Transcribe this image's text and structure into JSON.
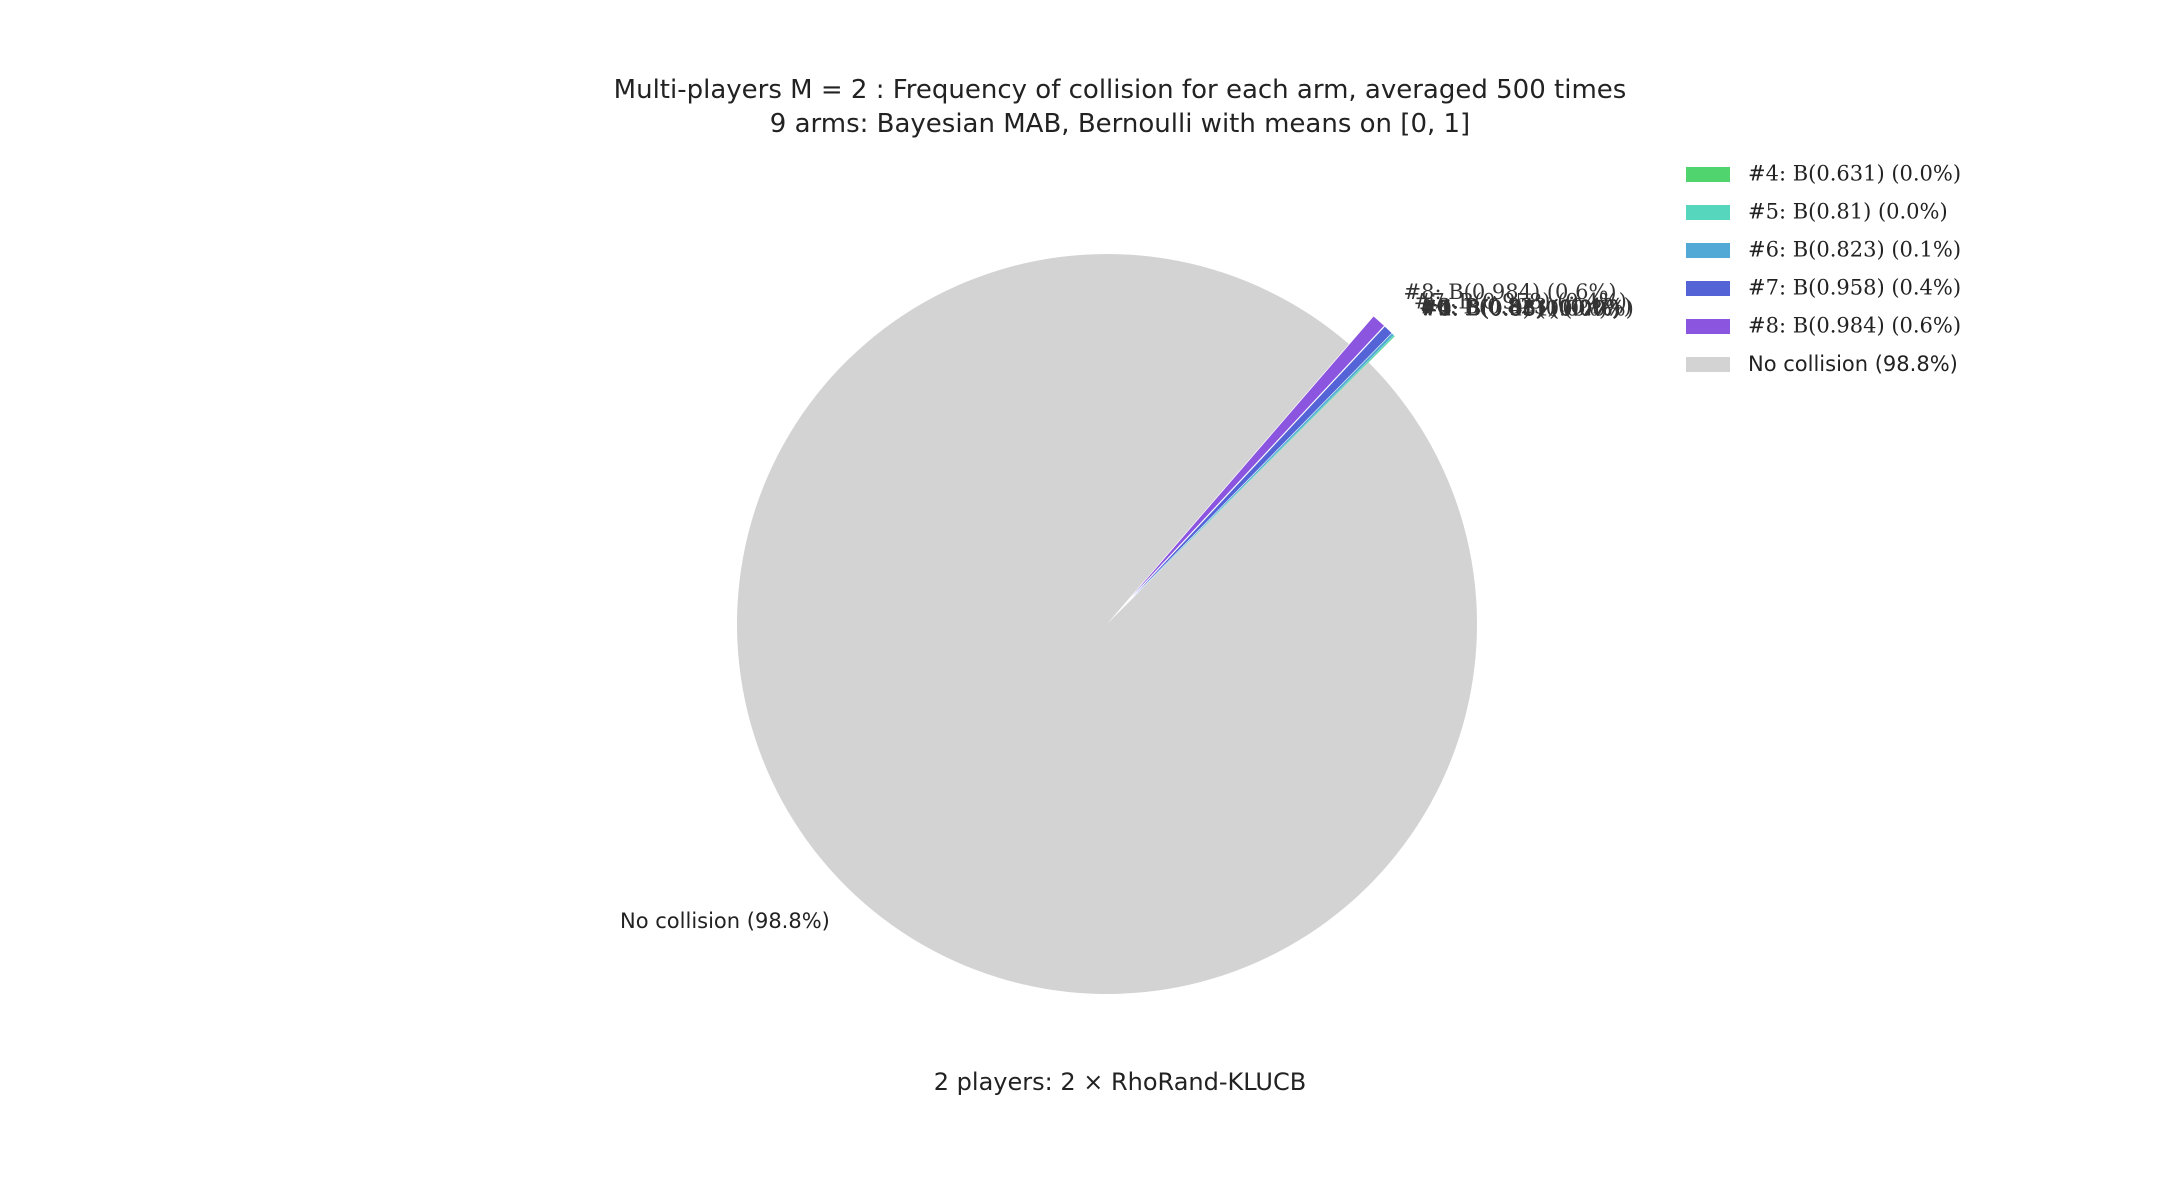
{
  "chart_data": {
    "type": "pie",
    "title": "Multi-players M = 2 : Frequency of collision for each arm, averaged 500 times",
    "subtitle": "9 arms: Bayesian MAB, Bernoulli with means on [0, 1]",
    "xlabel": "2 players: 2 × RhoRand-KLUCB",
    "legend_position": "top-right",
    "start_angle_deg": 45,
    "counterclockwise": true,
    "explode_fraction": 0.1,
    "slices": [
      {
        "label": "#0: B(0.0) (0.0%)",
        "value": 0.0,
        "color": "#e67e68",
        "show_in_legend": false
      },
      {
        "label": "#1: B(0.05) (0.0%)",
        "value": 0.0,
        "color": "#e9b85e",
        "show_in_legend": false
      },
      {
        "label": "#2: B(0.36) (0.0%)",
        "value": 0.0,
        "color": "#c5d94f",
        "show_in_legend": false
      },
      {
        "label": "#3: B(0.43) (0.0%)",
        "value": 0.0,
        "color": "#87d65a",
        "show_in_legend": false
      },
      {
        "label": "#4: B(0.631) (0.0%)",
        "value": 0.02,
        "color": "#4fd46e",
        "show_in_legend": true
      },
      {
        "label": "#5: B(0.81) (0.0%)",
        "value": 0.04,
        "color": "#55d6bd",
        "show_in_legend": true
      },
      {
        "label": "#6: B(0.823) (0.1%)",
        "value": 0.1,
        "color": "#52a9d6",
        "show_in_legend": true
      },
      {
        "label": "#7: B(0.958) (0.4%)",
        "value": 0.4,
        "color": "#5463d6",
        "show_in_legend": true
      },
      {
        "label": "#8: B(0.984) (0.6%)",
        "value": 0.6,
        "color": "#8c55e0",
        "show_in_legend": true
      },
      {
        "label": "No collision (98.8%)",
        "value": 98.84,
        "color": "#d3d3d3",
        "show_in_legend": true
      }
    ]
  }
}
